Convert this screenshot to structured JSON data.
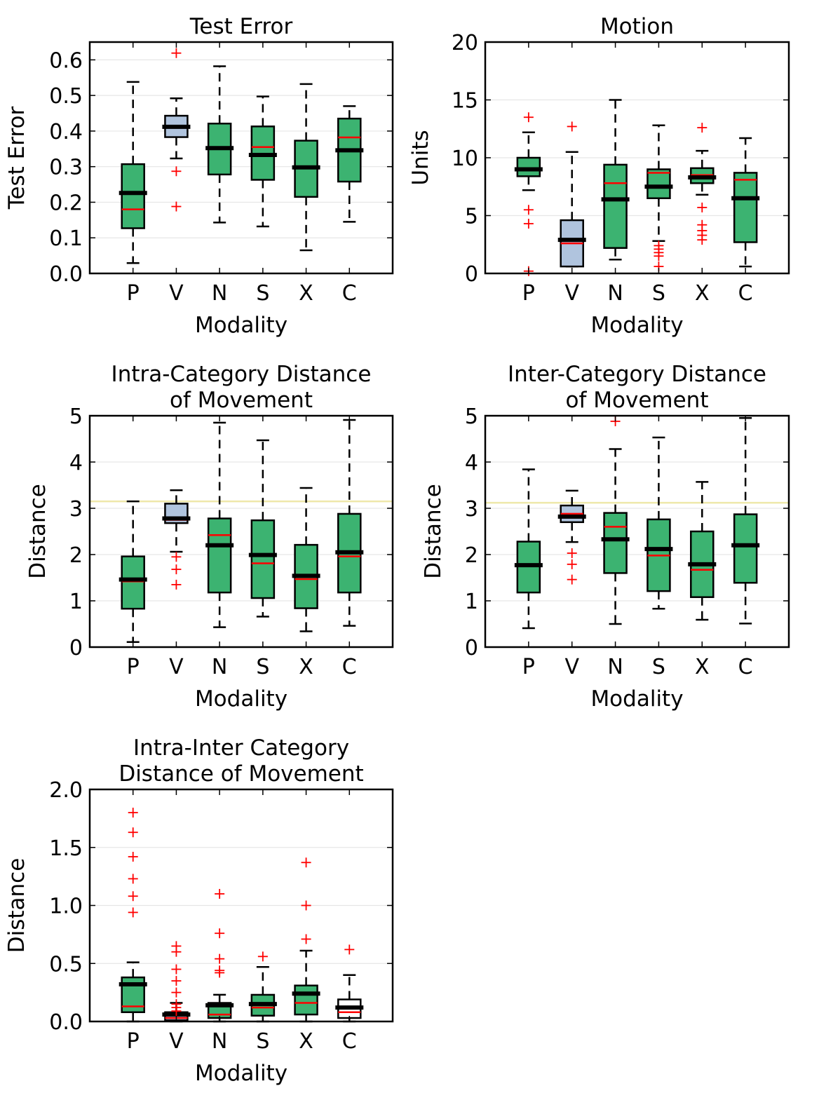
{
  "colors": {
    "box_fill": "#3cb371",
    "box_fill_highlight": "#b0c4de",
    "median": "#ff0000",
    "mean": "#000000",
    "outlier": "#ff0000",
    "reference_line": "#eee8aa",
    "grid": "#e6e6e6"
  },
  "chart_data": [
    {
      "type": "boxplot",
      "title": "Test Error",
      "xlabel": "Modality",
      "ylabel": "Test Error",
      "ylim": [
        0,
        0.65
      ],
      "yticks": [
        0.0,
        0.1,
        0.2,
        0.3,
        0.4,
        0.5,
        0.6
      ],
      "ytick_labels": [
        "0.0",
        "0.1",
        "0.2",
        "0.3",
        "0.4",
        "0.5",
        "0.6"
      ],
      "grid": "horizontal",
      "categories": [
        "P",
        "V",
        "N",
        "S",
        "X",
        "C"
      ],
      "boxes": [
        {
          "q1": 0.127,
          "q3": 0.307,
          "median": 0.18,
          "mean": 0.226,
          "whisker_low": 0.029,
          "whisker_high": 0.538,
          "outliers": []
        },
        {
          "q1": 0.383,
          "q3": 0.443,
          "median": 0.412,
          "mean": 0.412,
          "whisker_low": 0.323,
          "whisker_high": 0.492,
          "outliers": [
            0.619,
            0.287,
            0.188
          ],
          "highlight": true
        },
        {
          "q1": 0.278,
          "q3": 0.421,
          "median": 0.352,
          "mean": 0.352,
          "whisker_low": 0.143,
          "whisker_high": 0.582,
          "outliers": []
        },
        {
          "q1": 0.263,
          "q3": 0.413,
          "median": 0.355,
          "mean": 0.333,
          "whisker_low": 0.132,
          "whisker_high": 0.497,
          "outliers": []
        },
        {
          "q1": 0.215,
          "q3": 0.373,
          "median": 0.3,
          "mean": 0.298,
          "whisker_low": 0.065,
          "whisker_high": 0.532,
          "outliers": []
        },
        {
          "q1": 0.258,
          "q3": 0.435,
          "median": 0.382,
          "mean": 0.346,
          "whisker_low": 0.145,
          "whisker_high": 0.47,
          "outliers": []
        }
      ]
    },
    {
      "type": "boxplot",
      "title": "Motion",
      "xlabel": "Modality",
      "ylabel": "Units",
      "ylim": [
        0,
        20
      ],
      "yticks": [
        0,
        5,
        10,
        15,
        20
      ],
      "ytick_labels": [
        "0",
        "5",
        "10",
        "15",
        "20"
      ],
      "grid": "horizontal",
      "categories": [
        "P",
        "V",
        "N",
        "S",
        "X",
        "C"
      ],
      "boxes": [
        {
          "q1": 8.4,
          "q3": 10.0,
          "median": 9.0,
          "mean": 9.0,
          "whisker_low": 7.2,
          "whisker_high": 12.2,
          "outliers": [
            13.5,
            5.5,
            4.3,
            0.2
          ]
        },
        {
          "q1": 0.6,
          "q3": 4.6,
          "median": 2.6,
          "mean": 2.9,
          "whisker_low": 0.6,
          "whisker_high": 10.5,
          "outliers": [
            12.7
          ],
          "highlight": true
        },
        {
          "q1": 2.2,
          "q3": 9.4,
          "median": 7.8,
          "mean": 6.4,
          "whisker_low": 1.2,
          "whisker_high": 15.0,
          "outliers": []
        },
        {
          "q1": 6.5,
          "q3": 9.0,
          "median": 8.7,
          "mean": 7.5,
          "whisker_low": 2.8,
          "whisker_high": 12.8,
          "outliers": [
            2.4,
            2.1,
            1.8,
            1.5,
            0.6
          ]
        },
        {
          "q1": 7.8,
          "q3": 9.1,
          "median": 8.5,
          "mean": 8.3,
          "whisker_low": 6.8,
          "whisker_high": 10.6,
          "outliers": [
            12.6,
            5.7,
            4.2,
            3.7,
            3.3,
            2.9
          ]
        },
        {
          "q1": 2.7,
          "q3": 8.7,
          "median": 8.1,
          "mean": 6.5,
          "whisker_low": 0.6,
          "whisker_high": 11.7,
          "outliers": []
        }
      ]
    },
    {
      "type": "boxplot",
      "title": "Intra-Category Distance\nof Movement",
      "xlabel": "Modality",
      "ylabel": "Distance",
      "ylim": [
        0,
        5
      ],
      "yticks": [
        0,
        1,
        2,
        3,
        4,
        5
      ],
      "ytick_labels": [
        "0",
        "1",
        "2",
        "3",
        "4",
        "5"
      ],
      "grid": "horizontal",
      "reference_line": 3.15,
      "categories": [
        "P",
        "V",
        "N",
        "S",
        "X",
        "C"
      ],
      "boxes": [
        {
          "q1": 0.83,
          "q3": 1.96,
          "median": 1.42,
          "mean": 1.46,
          "whisker_low": 0.11,
          "whisker_high": 3.15,
          "outliers": []
        },
        {
          "q1": 2.68,
          "q3": 3.1,
          "median": 2.75,
          "mean": 2.78,
          "whisker_low": 2.06,
          "whisker_high": 3.39,
          "outliers": [
            1.95,
            1.68,
            1.35
          ],
          "highlight": true
        },
        {
          "q1": 1.18,
          "q3": 2.78,
          "median": 2.42,
          "mean": 2.2,
          "whisker_low": 0.43,
          "whisker_high": 4.85,
          "outliers": []
        },
        {
          "q1": 1.06,
          "q3": 2.74,
          "median": 1.81,
          "mean": 1.99,
          "whisker_low": 0.66,
          "whisker_high": 4.47,
          "outliers": []
        },
        {
          "q1": 0.84,
          "q3": 2.21,
          "median": 1.47,
          "mean": 1.54,
          "whisker_low": 0.34,
          "whisker_high": 3.44,
          "outliers": []
        },
        {
          "q1": 1.18,
          "q3": 2.88,
          "median": 1.96,
          "mean": 2.05,
          "whisker_low": 0.46,
          "whisker_high": 4.91,
          "outliers": []
        }
      ]
    },
    {
      "type": "boxplot",
      "title": "Inter-Category Distance\nof Movement",
      "xlabel": "Modality",
      "ylabel": "Distance",
      "ylim": [
        0,
        5
      ],
      "yticks": [
        0,
        1,
        2,
        3,
        4,
        5
      ],
      "ytick_labels": [
        "0",
        "1",
        "2",
        "3",
        "4",
        "5"
      ],
      "grid": "horizontal",
      "reference_line": 3.12,
      "categories": [
        "P",
        "V",
        "N",
        "S",
        "X",
        "C"
      ],
      "boxes": [
        {
          "q1": 1.18,
          "q3": 2.28,
          "median": 1.77,
          "mean": 1.77,
          "whisker_low": 0.41,
          "whisker_high": 3.84,
          "outliers": []
        },
        {
          "q1": 2.7,
          "q3": 3.06,
          "median": 2.88,
          "mean": 2.82,
          "whisker_low": 2.27,
          "whisker_high": 3.38,
          "outliers": [
            2.03,
            1.79,
            1.46
          ],
          "highlight": true
        },
        {
          "q1": 1.6,
          "q3": 2.9,
          "median": 2.6,
          "mean": 2.33,
          "whisker_low": 0.5,
          "whisker_high": 4.28,
          "outliers": [
            4.88
          ]
        },
        {
          "q1": 1.21,
          "q3": 2.76,
          "median": 1.98,
          "mean": 2.12,
          "whisker_low": 0.83,
          "whisker_high": 4.53,
          "outliers": []
        },
        {
          "q1": 1.08,
          "q3": 2.5,
          "median": 1.67,
          "mean": 1.79,
          "whisker_low": 0.59,
          "whisker_high": 3.57,
          "outliers": []
        },
        {
          "q1": 1.39,
          "q3": 2.87,
          "median": 2.2,
          "mean": 2.2,
          "whisker_low": 0.51,
          "whisker_high": 4.95,
          "outliers": []
        }
      ]
    },
    {
      "type": "boxplot",
      "title": "Intra-Inter Category\nDistance of Movement",
      "xlabel": "Modality",
      "ylabel": "Distance",
      "ylim": [
        0,
        2
      ],
      "yticks": [
        0.0,
        0.5,
        1.0,
        1.5,
        2.0
      ],
      "ytick_labels": [
        "0.0",
        "0.5",
        "1.0",
        "1.5",
        "2.0"
      ],
      "grid": "horizontal",
      "categories": [
        "P",
        "V",
        "N",
        "S",
        "X",
        "C"
      ],
      "boxes": [
        {
          "q1": 0.08,
          "q3": 0.38,
          "median": 0.13,
          "mean": 0.32,
          "whisker_low": 0.0,
          "whisker_high": 0.51,
          "outliers": [
            1.8,
            1.63,
            1.42,
            1.23,
            1.08,
            0.94
          ]
        },
        {
          "q1": 0.01,
          "q3": 0.08,
          "median": 0.03,
          "mean": 0.06,
          "whisker_low": 0.0,
          "whisker_high": 0.16,
          "outliers": [
            0.65,
            0.6,
            0.45,
            0.35,
            0.25,
            0.15,
            0.12,
            0.09
          ],
          "highlight": true
        },
        {
          "q1": 0.03,
          "q3": 0.16,
          "median": 0.06,
          "mean": 0.14,
          "whisker_low": 0.0,
          "whisker_high": 0.23,
          "outliers": [
            1.1,
            0.76,
            0.54,
            0.44,
            0.42
          ]
        },
        {
          "q1": 0.05,
          "q3": 0.23,
          "median": 0.12,
          "mean": 0.15,
          "whisker_low": 0.0,
          "whisker_high": 0.47,
          "outliers": [
            0.56
          ]
        },
        {
          "q1": 0.06,
          "q3": 0.31,
          "median": 0.16,
          "mean": 0.24,
          "whisker_low": 0.0,
          "whisker_high": 0.61,
          "outliers": [
            1.37,
            1.0,
            0.71
          ]
        },
        {
          "q1": 0.03,
          "q3": 0.19,
          "median": 0.08,
          "mean": 0.12,
          "whisker_low": 0.0,
          "whisker_high": 0.4,
          "outliers": [
            0.62
          ],
          "white_fill": true
        }
      ]
    }
  ]
}
